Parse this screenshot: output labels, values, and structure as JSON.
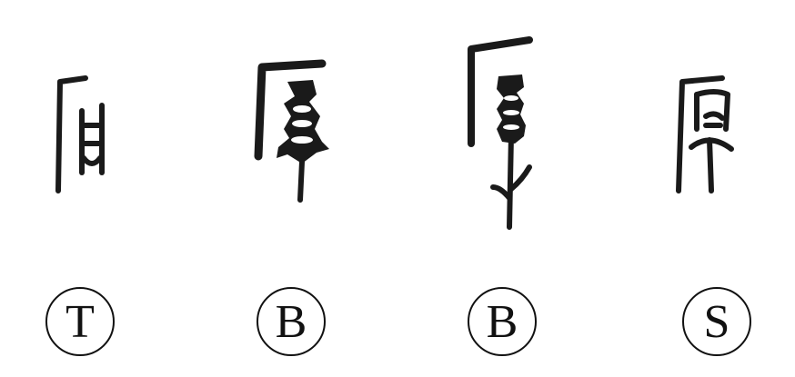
{
  "items": [
    {
      "glyph_icon": "oracle-bone-glyph-icon",
      "label": "T"
    },
    {
      "glyph_icon": "bronze-glyph-icon",
      "label": "B"
    },
    {
      "glyph_icon": "bronze-glyph-variant-icon",
      "label": "B"
    },
    {
      "glyph_icon": "seal-script-glyph-icon",
      "label": "S"
    }
  ],
  "ink_color": "#1a1a1a"
}
